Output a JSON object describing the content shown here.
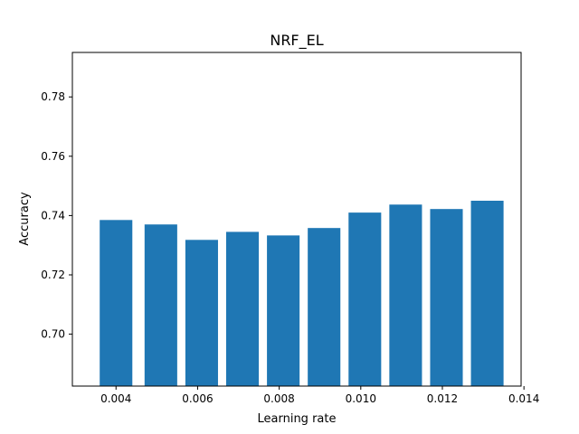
{
  "chart_data": {
    "type": "bar",
    "title": "NRF_EL",
    "xlabel": "Learning rate",
    "ylabel": "Accuracy",
    "x": [
      0.004,
      0.0051,
      0.0061,
      0.0071,
      0.0081,
      0.0091,
      0.0101,
      0.0111,
      0.0121,
      0.0131
    ],
    "values": [
      0.7385,
      0.737,
      0.7318,
      0.7345,
      0.7333,
      0.7358,
      0.741,
      0.7437,
      0.7422,
      0.745
    ],
    "bar_width": 0.0008,
    "xlim": [
      0.00293,
      0.01393
    ],
    "ylim": [
      0.6825,
      0.795
    ],
    "xticks": [
      0.004,
      0.006,
      0.008,
      0.01,
      0.012,
      0.014
    ],
    "xtick_labels": [
      "0.004",
      "0.006",
      "0.008",
      "0.010",
      "0.012",
      "0.014"
    ],
    "yticks": [
      0.7,
      0.72,
      0.74,
      0.76,
      0.78
    ],
    "ytick_labels": [
      "0.70",
      "0.72",
      "0.74",
      "0.76",
      "0.78"
    ],
    "bar_color": "#1f77b4",
    "grid": false,
    "legend": "none"
  }
}
